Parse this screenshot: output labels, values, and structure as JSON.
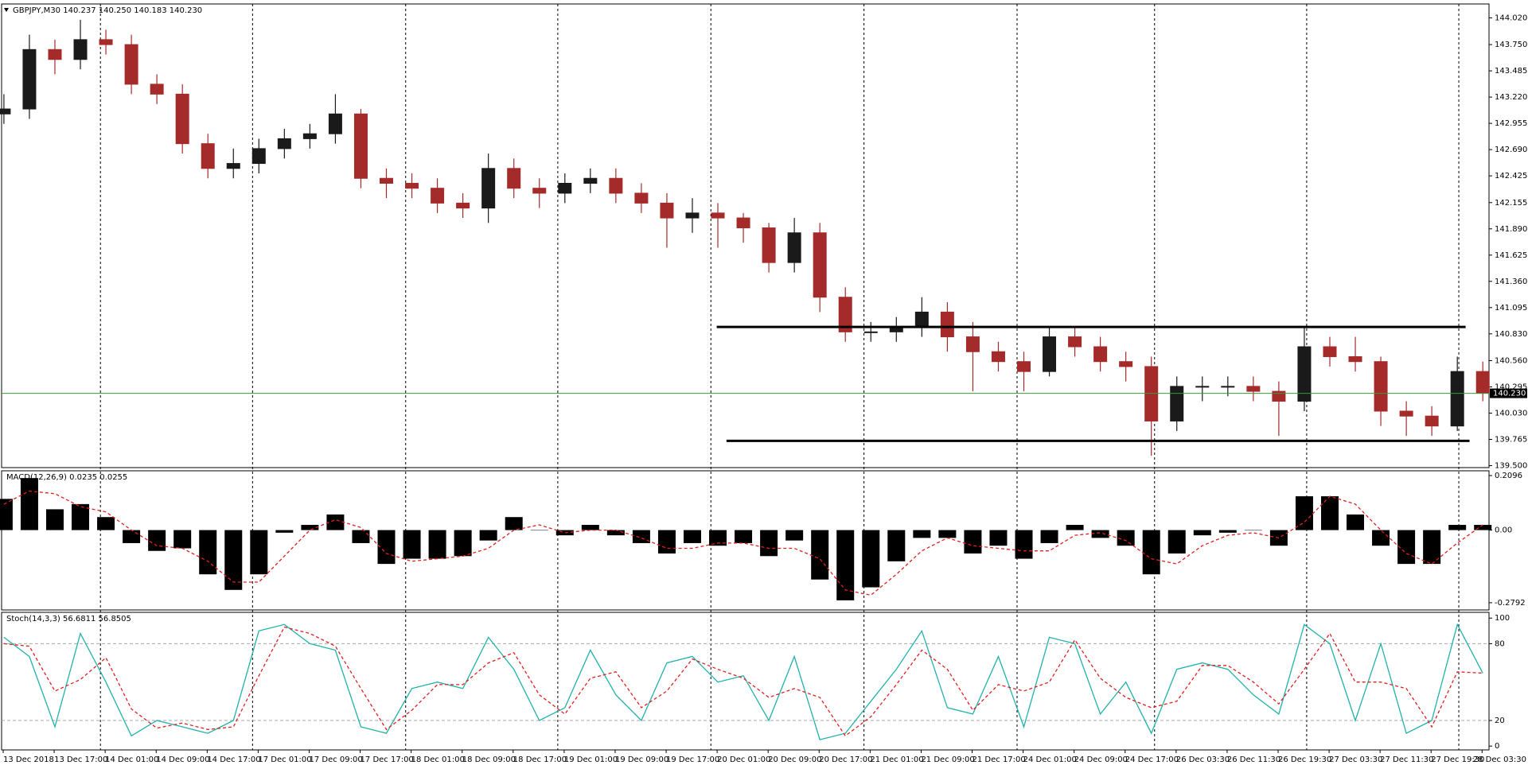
{
  "chart_data": [
    {
      "type": "candlestick",
      "title": "GBPJPY,M30  140.237 140.250 140.183 140.230",
      "x_labels": [
        "13 Dec 2018",
        "13 Dec 17:00",
        "14 Dec 01:00",
        "14 Dec 09:00",
        "14 Dec 17:00",
        "17 Dec 01:00",
        "17 Dec 09:00",
        "17 Dec 17:00",
        "18 Dec 01:00",
        "18 Dec 09:00",
        "18 Dec 17:00",
        "19 Dec 01:00",
        "19 Dec 09:00",
        "19 Dec 17:00",
        "20 Dec 01:00",
        "20 Dec 09:00",
        "20 Dec 17:00",
        "21 Dec 01:00",
        "21 Dec 09:00",
        "21 Dec 17:00",
        "24 Dec 01:00",
        "24 Dec 09:00",
        "24 Dec 17:00",
        "26 Dec 03:30",
        "26 Dec 11:30",
        "26 Dec 19:30",
        "27 Dec 03:30",
        "27 Dec 11:30",
        "27 Dec 19:30",
        "28 Dec 03:30"
      ],
      "open": [
        143.05,
        143.1,
        143.7,
        143.6,
        143.8,
        143.75,
        143.35,
        143.25,
        142.75,
        142.5,
        142.55,
        142.7,
        142.8,
        142.85,
        143.05,
        142.4,
        142.35,
        142.3,
        142.15,
        142.1,
        142.5,
        142.3,
        142.25,
        142.35,
        142.4,
        142.25,
        142.15,
        142.0,
        142.05,
        142.0,
        141.9,
        141.55,
        141.85,
        141.2,
        140.85,
        140.85,
        140.9,
        141.05,
        140.8,
        140.65,
        140.55,
        140.45,
        140.8,
        140.7,
        140.55,
        140.5,
        139.95,
        140.3,
        140.3,
        140.3,
        140.25,
        140.15,
        140.7,
        140.6,
        140.55,
        140.05,
        140.0,
        139.9,
        140.45
      ],
      "high": [
        143.25,
        143.85,
        143.8,
        144.0,
        143.9,
        143.85,
        143.45,
        143.35,
        142.85,
        142.7,
        142.8,
        142.9,
        142.95,
        143.25,
        143.1,
        142.5,
        142.45,
        142.4,
        142.25,
        142.65,
        142.6,
        142.4,
        142.45,
        142.5,
        142.5,
        142.35,
        142.25,
        142.2,
        142.15,
        142.05,
        141.95,
        142.0,
        141.95,
        141.3,
        140.95,
        141.0,
        141.2,
        141.15,
        140.95,
        140.75,
        140.65,
        140.9,
        140.9,
        140.8,
        140.65,
        140.6,
        140.4,
        140.4,
        140.4,
        140.4,
        140.35,
        140.9,
        140.8,
        140.8,
        140.6,
        140.15,
        140.1,
        140.6,
        140.55
      ],
      "low": [
        142.95,
        143.0,
        143.45,
        143.5,
        143.65,
        143.25,
        143.15,
        142.65,
        142.4,
        142.4,
        142.45,
        142.6,
        142.7,
        142.75,
        142.3,
        142.2,
        142.2,
        142.05,
        142.0,
        141.95,
        142.2,
        142.1,
        142.15,
        142.25,
        142.15,
        142.05,
        141.7,
        141.85,
        141.7,
        141.75,
        141.45,
        141.45,
        141.05,
        140.75,
        140.75,
        140.75,
        140.8,
        140.65,
        140.25,
        140.45,
        140.25,
        140.4,
        140.6,
        140.45,
        140.35,
        139.6,
        139.85,
        140.15,
        140.2,
        140.15,
        139.8,
        140.05,
        140.5,
        140.45,
        139.9,
        139.8,
        139.8,
        139.85,
        140.15
      ],
      "close": [
        143.1,
        143.7,
        143.6,
        143.8,
        143.75,
        143.35,
        143.25,
        142.75,
        142.5,
        142.55,
        142.7,
        142.8,
        142.85,
        143.05,
        142.4,
        142.35,
        142.3,
        142.15,
        142.1,
        142.5,
        142.3,
        142.25,
        142.35,
        142.4,
        142.25,
        142.15,
        142.0,
        142.05,
        142.0,
        141.9,
        141.55,
        141.85,
        141.2,
        140.85,
        140.85,
        140.9,
        141.05,
        140.8,
        140.65,
        140.55,
        140.45,
        140.8,
        140.7,
        140.55,
        140.5,
        139.95,
        140.3,
        140.3,
        140.3,
        140.25,
        140.15,
        140.7,
        140.6,
        140.55,
        140.05,
        140.0,
        139.9,
        140.45,
        140.23
      ],
      "up_color": "#1a1a1a",
      "down_color": "#a52a2a",
      "ylim": [
        139.48,
        144.16
      ],
      "yticks": [
        {
          "value": 144.02,
          "label": "144.020"
        },
        {
          "value": 143.75,
          "label": "143.750"
        },
        {
          "value": 143.485,
          "label": "143.485"
        },
        {
          "value": 143.22,
          "label": "143.220"
        },
        {
          "value": 142.955,
          "label": "142.955"
        },
        {
          "value": 142.69,
          "label": "142.690"
        },
        {
          "value": 142.425,
          "label": "142.425"
        },
        {
          "value": 142.155,
          "label": "142.155"
        },
        {
          "value": 141.89,
          "label": "141.890"
        },
        {
          "value": 141.625,
          "label": "141.625"
        },
        {
          "value": 141.36,
          "label": "141.360"
        },
        {
          "value": 141.095,
          "label": "141.095"
        },
        {
          "value": 140.83,
          "label": "140.830"
        },
        {
          "value": 140.56,
          "label": "140.560"
        },
        {
          "value": 140.295,
          "label": "140.295"
        },
        {
          "value": 140.03,
          "label": "140.030"
        },
        {
          "value": 139.765,
          "label": "139.765"
        },
        {
          "value": 139.5,
          "label": "139.500"
        }
      ],
      "levels": [
        140.9,
        139.75
      ],
      "current": {
        "value": 140.23,
        "label": "140.230",
        "color": "#3a9a3a"
      }
    },
    {
      "type": "macd",
      "title": "MACD(12,26,9) 0.0235 0.0255",
      "histogram": [
        0.12,
        0.2,
        0.08,
        0.1,
        0.05,
        -0.05,
        -0.08,
        -0.07,
        -0.17,
        -0.23,
        -0.17,
        -0.01,
        0.02,
        0.06,
        -0.05,
        -0.13,
        -0.11,
        -0.11,
        -0.1,
        -0.04,
        0.05,
        0.0,
        -0.02,
        0.02,
        -0.02,
        -0.05,
        -0.09,
        -0.05,
        -0.06,
        -0.05,
        -0.1,
        -0.04,
        -0.19,
        -0.27,
        -0.22,
        -0.12,
        -0.03,
        -0.03,
        -0.09,
        -0.06,
        -0.11,
        -0.05,
        0.02,
        -0.03,
        -0.06,
        -0.17,
        -0.09,
        -0.02,
        -0.01,
        0.0,
        -0.06,
        0.13,
        0.13,
        0.06,
        -0.06,
        -0.13,
        -0.13,
        0.02,
        0.02
      ],
      "signal": [
        0.1,
        0.15,
        0.14,
        0.09,
        0.07,
        0.0,
        -0.06,
        -0.07,
        -0.12,
        -0.2,
        -0.2,
        -0.1,
        0.0,
        0.04,
        0.01,
        -0.09,
        -0.12,
        -0.11,
        -0.1,
        -0.07,
        0.0,
        0.02,
        -0.01,
        0.0,
        0.0,
        -0.03,
        -0.07,
        -0.07,
        -0.05,
        -0.05,
        -0.07,
        -0.07,
        -0.11,
        -0.23,
        -0.25,
        -0.17,
        -0.08,
        -0.03,
        -0.06,
        -0.07,
        -0.08,
        -0.08,
        -0.02,
        -0.01,
        -0.04,
        -0.11,
        -0.13,
        -0.06,
        -0.02,
        -0.01,
        -0.03,
        0.03,
        0.13,
        0.1,
        0.0,
        -0.09,
        -0.13,
        -0.05,
        0.02
      ],
      "histogram_color": "#000000",
      "signal_color": "#e02020",
      "ylim": [
        -0.307,
        0.228
      ],
      "yticks": [
        0.2096,
        {
          "value": 0,
          "label": "0.00"
        },
        -0.2792
      ]
    },
    {
      "type": "stoch",
      "title": "Stoch(14,3,3) 56.6811 56.8505",
      "main": [
        85,
        70,
        15,
        88,
        50,
        8,
        20,
        15,
        10,
        20,
        90,
        95,
        80,
        75,
        15,
        10,
        45,
        50,
        45,
        85,
        60,
        20,
        30,
        75,
        40,
        20,
        65,
        70,
        50,
        55,
        20,
        70,
        5,
        10,
        35,
        60,
        90,
        30,
        25,
        70,
        15,
        85,
        80,
        25,
        50,
        10,
        60,
        65,
        60,
        40,
        25,
        95,
        80,
        20,
        80,
        10,
        20,
        95,
        57
      ],
      "signal": [
        80,
        78,
        43,
        52,
        69,
        29,
        14,
        18,
        13,
        15,
        55,
        93,
        88,
        78,
        45,
        13,
        28,
        48,
        48,
        65,
        73,
        40,
        25,
        53,
        58,
        30,
        43,
        68,
        60,
        53,
        38,
        45,
        38,
        8,
        23,
        48,
        75,
        60,
        28,
        48,
        43,
        50,
        83,
        53,
        38,
        30,
        35,
        63,
        63,
        50,
        33,
        60,
        88,
        50,
        50,
        45,
        15,
        58,
        57
      ],
      "main_color": "#20b2aa",
      "signal_color": "#e02020",
      "ylim": [
        -3,
        104.5
      ],
      "yticks": [
        100,
        80,
        20,
        0
      ],
      "levels": [
        80,
        20
      ]
    }
  ]
}
